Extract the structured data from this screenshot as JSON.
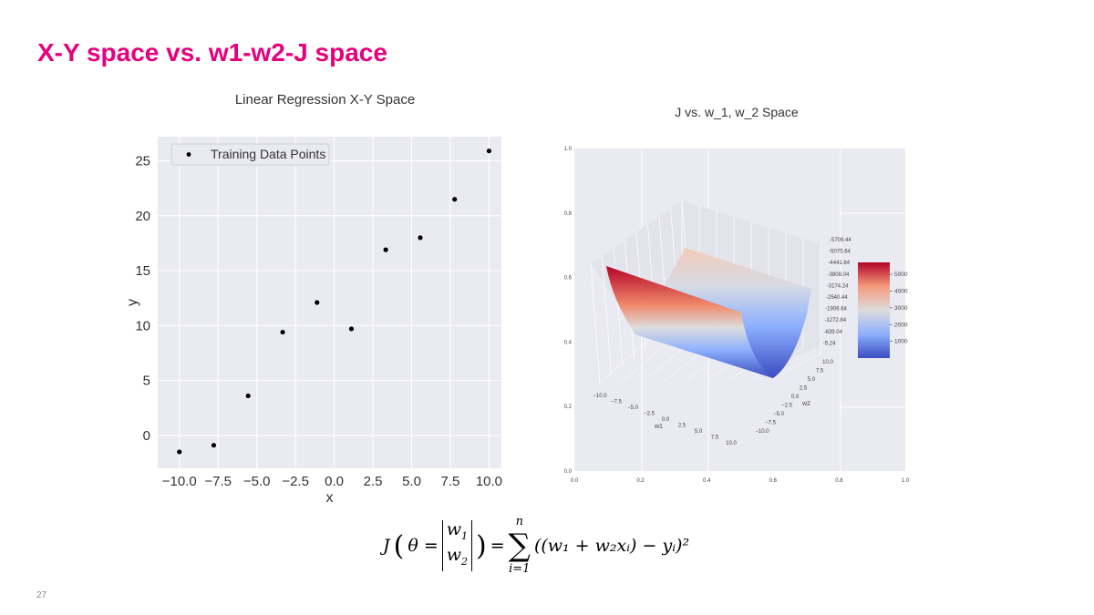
{
  "slide": {
    "title": "X-Y space vs. w1-w2-J space",
    "page_number": "27",
    "formula": {
      "lhs": "J",
      "theta": "θ =",
      "m1": "w",
      "m1sub": "1",
      "m2": "w",
      "m2sub": "2",
      "eq": "=",
      "sum_top": "n",
      "sum_bottom": "i=1",
      "body": "((w₁ + w₂xᵢ) − yᵢ)²"
    }
  },
  "chart_data": [
    {
      "type": "scatter",
      "title": "Linear Regression X-Y Space",
      "xlabel": "x",
      "ylabel": "y",
      "xlim": [
        -11.4,
        10.8
      ],
      "ylim": [
        -3.0,
        27.2
      ],
      "xticks": [
        "−10.0",
        "−7.5",
        "−5.0",
        "−2.5",
        "0.0",
        "2.5",
        "5.0",
        "7.5",
        "10.0"
      ],
      "xtick_values": [
        -10,
        -7.5,
        -5,
        -2.5,
        0,
        2.5,
        5,
        7.5,
        10
      ],
      "yticks": [
        "0",
        "5",
        "10",
        "15",
        "20",
        "25"
      ],
      "ytick_values": [
        0,
        5,
        10,
        15,
        20,
        25
      ],
      "grid": true,
      "legend": "top-left",
      "background": "#eaeaf2",
      "series": [
        {
          "name": "Training Data Points",
          "color": "#000000",
          "x": [
            -10,
            -7.78,
            -5.56,
            -3.33,
            -1.11,
            1.11,
            3.33,
            5.56,
            7.78,
            10
          ],
          "y": [
            -1.5,
            -0.9,
            3.6,
            9.4,
            12.1,
            9.7,
            16.9,
            18.0,
            21.5,
            25.9
          ]
        }
      ]
    },
    {
      "type": "surface3d",
      "title": "J vs. w_1, w_2 Space",
      "xlabel": "w1",
      "ylabel": "w2",
      "w1_ticks": [
        "−10.0",
        "−7.5",
        "−5.0",
        "−2.5",
        "0.0",
        "2.5",
        "5.0",
        "7.5",
        "10.0"
      ],
      "w2_ticks": [
        "10.0",
        "7.5",
        "5.0",
        "2.5",
        "0.0",
        "−2.5",
        "−5.0",
        "−7.5",
        "−10.0"
      ],
      "z_ticks": [
        "5709.44",
        "5075.64",
        "4441.84",
        "3808.04",
        "3174.24",
        "2540.44",
        "1906.64",
        "1272.84",
        "639.04",
        "5.24"
      ],
      "outer_xticks": [
        "0.0",
        "0.2",
        "0.4",
        "0.6",
        "0.8",
        "1.0"
      ],
      "outer_yticks": [
        "0.0",
        "0.2",
        "0.4",
        "0.6",
        "0.8",
        "1.0"
      ],
      "colormap": "coolwarm",
      "colorbar_ticks": [
        "5000",
        "4000",
        "3000",
        "2000",
        "1000"
      ],
      "colorbar_values": [
        5000,
        4000,
        3000,
        2000,
        1000
      ],
      "colorbar_range": [
        5.24,
        5709.44
      ],
      "background": "#eaeaf2"
    }
  ]
}
